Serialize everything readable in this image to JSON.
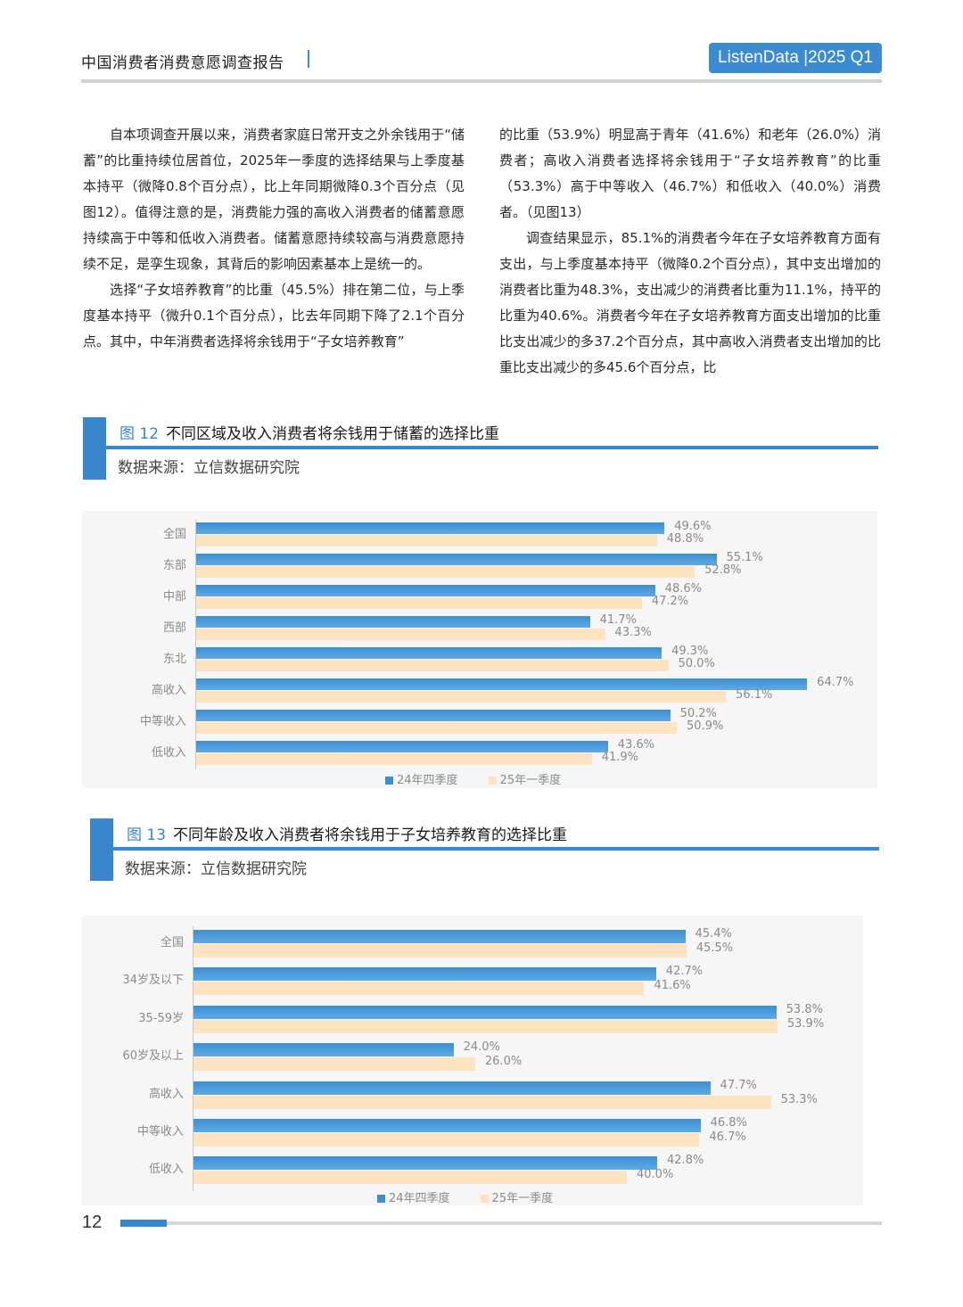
{
  "header": {
    "title": "中国消费者消费意愿调查报告",
    "badge": "ListenData |2025 Q1"
  },
  "body": {
    "left_paragraphs": [
      "自本项调查开展以来，消费者家庭日常开支之外余钱用于“储蓄”的比重持续位居首位，2025年一季度的选择结果与上季度基本持平（微降0.8个百分点），比上年同期微降0.3个百分点（见图12）。值得注意的是，消费能力强的高收入消费者的储蓄意愿持续高于中等和低收入消费者。储蓄意愿持续较高与消费意愿持续不足，是孪生现象，其背后的影响因素基本上是统一的。",
      "选择“子女培养教育”的比重（45.5%）排在第二位，与上季度基本持平（微升0.1个百分点），比去年同期下降了2.1个百分点。其中，中年消费者选择将余钱用于“子女培养教育”"
    ],
    "right_paragraphs": [
      "的比重（53.9%）明显高于青年（41.6%）和老年（26.0%）消费者；高收入消费者选择将余钱用于“子女培养教育”的比重（53.3%）高于中等收入（46.7%）和低收入（40.0%）消费者。（见图13）",
      "调查结果显示，85.1%的消费者今年在子女培养教育方面有支出，与上季度基本持平（微降0.2个百分点），其中支出增加的消费者比重为48.3%，支出减少的消费者比重为11.1%，持平的比重为40.6%。消费者今年在子女培养教育方面支出增加的比重比支出减少的多37.2个百分点，其中高收入消费者支出增加的比重比支出减少的多45.6个百分点，比"
    ]
  },
  "figures": [
    {
      "number": "图 12",
      "title": "不同区域及收入消费者将余钱用于储蓄的选择比重",
      "source": "数据来源：立信数据研究院"
    },
    {
      "number": "图 13",
      "title": "不同年龄及收入消费者将余钱用于子女培养教育的选择比重",
      "source": "数据来源：立信数据研究院"
    }
  ],
  "chart_data": [
    {
      "type": "bar",
      "orientation": "horizontal",
      "title": "不同区域及收入消费者将余钱用于储蓄的选择比重",
      "categories": [
        "全国",
        "东部",
        "中部",
        "西部",
        "东北",
        "高收入",
        "中等收入",
        "低收入"
      ],
      "series": [
        {
          "name": "24年四季度",
          "color": "#3d8fd2",
          "values": [
            49.6,
            55.1,
            48.6,
            41.7,
            49.3,
            64.7,
            50.2,
            43.6
          ]
        },
        {
          "name": "25年一季度",
          "color": "#fde3c0",
          "values": [
            48.8,
            52.8,
            47.2,
            43.3,
            50.0,
            56.1,
            50.9,
            41.9
          ]
        }
      ],
      "value_suffix": "%",
      "xlabel": "",
      "ylabel": "",
      "grid": false,
      "legend_position": "bottom"
    },
    {
      "type": "bar",
      "orientation": "horizontal",
      "title": "不同年龄及收入消费者将余钱用于子女培养教育的选择比重",
      "categories": [
        "全国",
        "34岁及以下",
        "35-59岁",
        "60岁及以上",
        "高收入",
        "中等收入",
        "低收入"
      ],
      "series": [
        {
          "name": "24年四季度",
          "color": "#3d8fd2",
          "values": [
            45.4,
            42.7,
            53.8,
            24.0,
            47.7,
            46.8,
            42.8
          ]
        },
        {
          "name": "25年一季度",
          "color": "#fde3c0",
          "values": [
            45.5,
            41.6,
            53.9,
            26.0,
            53.3,
            46.7,
            40.0
          ]
        }
      ],
      "value_suffix": "%",
      "xlabel": "",
      "ylabel": "",
      "grid": false,
      "legend_position": "bottom"
    }
  ],
  "footer": {
    "page_number": "12"
  }
}
